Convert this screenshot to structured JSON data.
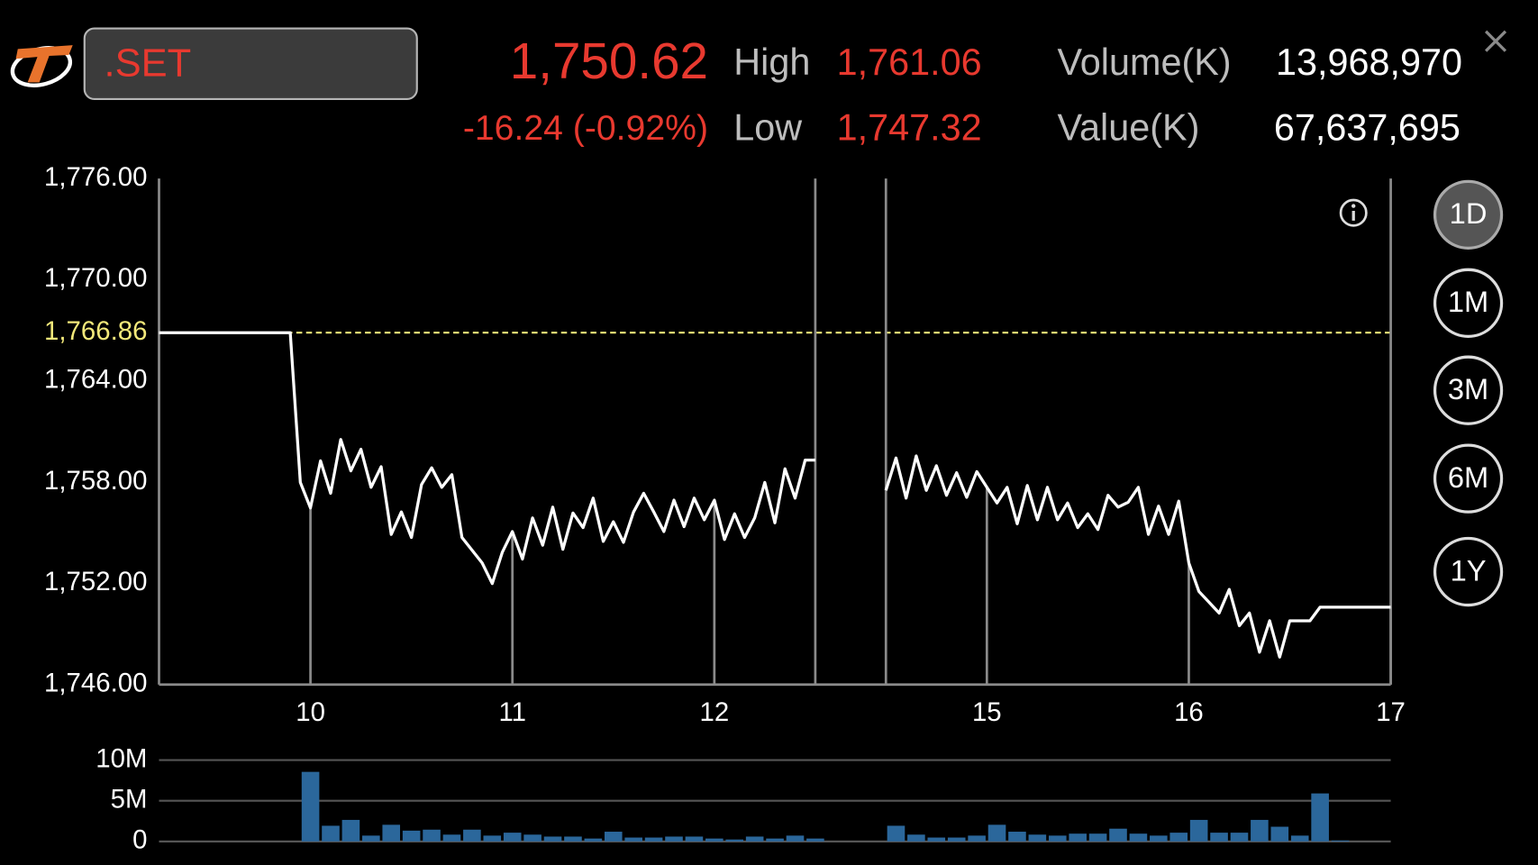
{
  "header": {
    "ticker": ".SET",
    "last": "1,750.62",
    "change": "-16.24 (-0.92%)",
    "high_label": "High",
    "high": "1,761.06",
    "low_label": "Low",
    "low": "1,747.32",
    "volume_label": "Volume(K)",
    "volume": "13,968,970",
    "value_label": "Value(K)",
    "value": "67,637,695"
  },
  "periods": [
    "1D",
    "1M",
    "3M",
    "6M",
    "1Y"
  ],
  "chart_data": [
    {
      "type": "line",
      "color": "#ffffff",
      "x": [
        9.25,
        9.9,
        9.95,
        10.0,
        10.05,
        10.1,
        10.15,
        10.2,
        10.25,
        10.3,
        10.35,
        10.4,
        10.45,
        10.5,
        10.55,
        10.6,
        10.65,
        10.7,
        10.75,
        10.85,
        10.9,
        10.95,
        11.0,
        11.05,
        11.1,
        11.15,
        11.2,
        11.25,
        11.3,
        11.35,
        11.4,
        11.45,
        11.5,
        11.55,
        11.6,
        11.65,
        11.7,
        11.75,
        11.8,
        11.85,
        11.9,
        11.95,
        12.0,
        12.05,
        12.1,
        12.15,
        12.2,
        12.25,
        12.3,
        12.35,
        12.4,
        12.45,
        12.5,
        13.5,
        14.5,
        14.55,
        14.6,
        14.65,
        14.7,
        14.75,
        14.8,
        14.85,
        14.9,
        14.95,
        15.0,
        15.05,
        15.1,
        15.15,
        15.2,
        15.25,
        15.3,
        15.35,
        15.4,
        15.45,
        15.5,
        15.55,
        15.6,
        15.65,
        15.7,
        15.75,
        15.8,
        15.85,
        15.9,
        15.95,
        16.0,
        16.05,
        16.1,
        16.15,
        16.2,
        16.25,
        16.3,
        16.35,
        16.4,
        16.45,
        16.5,
        16.6,
        16.65,
        17.0
      ],
      "values": [
        1766.86,
        1766.86,
        1757.98,
        1756.47,
        1759.26,
        1757.34,
        1760.53,
        1758.67,
        1759.95,
        1757.69,
        1758.91,
        1754.9,
        1756.23,
        1754.72,
        1757.86,
        1758.85,
        1757.69,
        1758.44,
        1754.72,
        1753.21,
        1751.99,
        1753.85,
        1755.07,
        1753.44,
        1755.88,
        1754.26,
        1756.52,
        1754.02,
        1756.17,
        1755.3,
        1757.05,
        1754.49,
        1755.65,
        1754.43,
        1756.23,
        1757.34,
        1756.23,
        1755.07,
        1756.93,
        1755.36,
        1757.05,
        1755.77,
        1756.93,
        1754.6,
        1756.12,
        1754.72,
        1755.88,
        1757.98,
        1755.59,
        1758.79,
        1757.05,
        1759.31,
        1759.31,
        null,
        1757.51,
        1759.43,
        1757.05,
        1759.55,
        1757.51,
        1758.97,
        1757.22,
        1758.56,
        1757.1,
        1758.62,
        1757.69,
        1756.76,
        1757.69,
        1755.53,
        1757.8,
        1755.77,
        1757.69,
        1755.77,
        1756.76,
        1755.3,
        1756.12,
        1755.19,
        1757.22,
        1756.52,
        1756.81,
        1757.69,
        1754.9,
        1756.58,
        1754.9,
        1756.87,
        1753.21,
        1751.52,
        1750.88,
        1750.24,
        1751.64,
        1749.49,
        1750.24,
        1747.92,
        1749.78,
        1747.63,
        1749.78,
        1749.78,
        1750.59,
        1750.59
      ],
      "xlim": [
        9.25,
        17
      ],
      "xbreak": [
        12.5,
        14.5
      ],
      "xticks": [
        10,
        11,
        12,
        15,
        16,
        17
      ],
      "ylim": [
        1746,
        1776
      ],
      "yticks": [
        {
          "value": 1746,
          "label": "1,746.00"
        },
        {
          "value": 1752,
          "label": "1,752.00"
        },
        {
          "value": 1758,
          "label": "1,758.00"
        },
        {
          "value": 1764,
          "label": "1,764.00"
        },
        {
          "value": 1770,
          "label": "1,770.00"
        },
        {
          "value": 1776,
          "label": "1,776.00"
        }
      ],
      "ref_line": {
        "value": 1766.86,
        "label": "1,766.86",
        "color": "#f2e87a"
      }
    },
    {
      "type": "bar",
      "color": "#2b679b",
      "x": [
        10.0,
        10.1,
        10.2,
        10.3,
        10.4,
        10.5,
        10.6,
        10.7,
        10.8,
        10.9,
        11.0,
        11.1,
        11.2,
        11.3,
        11.4,
        11.5,
        11.6,
        11.7,
        11.8,
        11.9,
        12.0,
        12.1,
        12.2,
        12.3,
        12.4,
        12.5,
        14.55,
        14.65,
        14.75,
        14.85,
        14.95,
        15.05,
        15.15,
        15.25,
        15.35,
        15.45,
        15.55,
        15.65,
        15.75,
        15.85,
        15.95,
        16.05,
        16.15,
        16.25,
        16.35,
        16.45,
        16.55,
        16.65,
        16.75
      ],
      "values": [
        8550000,
        1930000,
        2650000,
        720000,
        2050000,
        1330000,
        1450000,
        840000,
        1450000,
        720000,
        1080000,
        840000,
        600000,
        600000,
        360000,
        1200000,
        480000,
        480000,
        600000,
        600000,
        360000,
        240000,
        600000,
        360000,
        720000,
        360000,
        1930000,
        840000,
        480000,
        480000,
        720000,
        2050000,
        1200000,
        840000,
        720000,
        960000,
        960000,
        1570000,
        960000,
        720000,
        1080000,
        2650000,
        1080000,
        1080000,
        2650000,
        1810000,
        720000,
        5900000,
        120000
      ],
      "xlim": [
        9.25,
        17
      ],
      "xbreak": [
        12.5,
        14.5
      ],
      "ylim": [
        0,
        10000000
      ],
      "yticks": [
        0,
        {
          "value": 5000000,
          "label": "5M"
        },
        {
          "value": 10000000,
          "label": "10M"
        }
      ],
      "grid": true
    }
  ]
}
